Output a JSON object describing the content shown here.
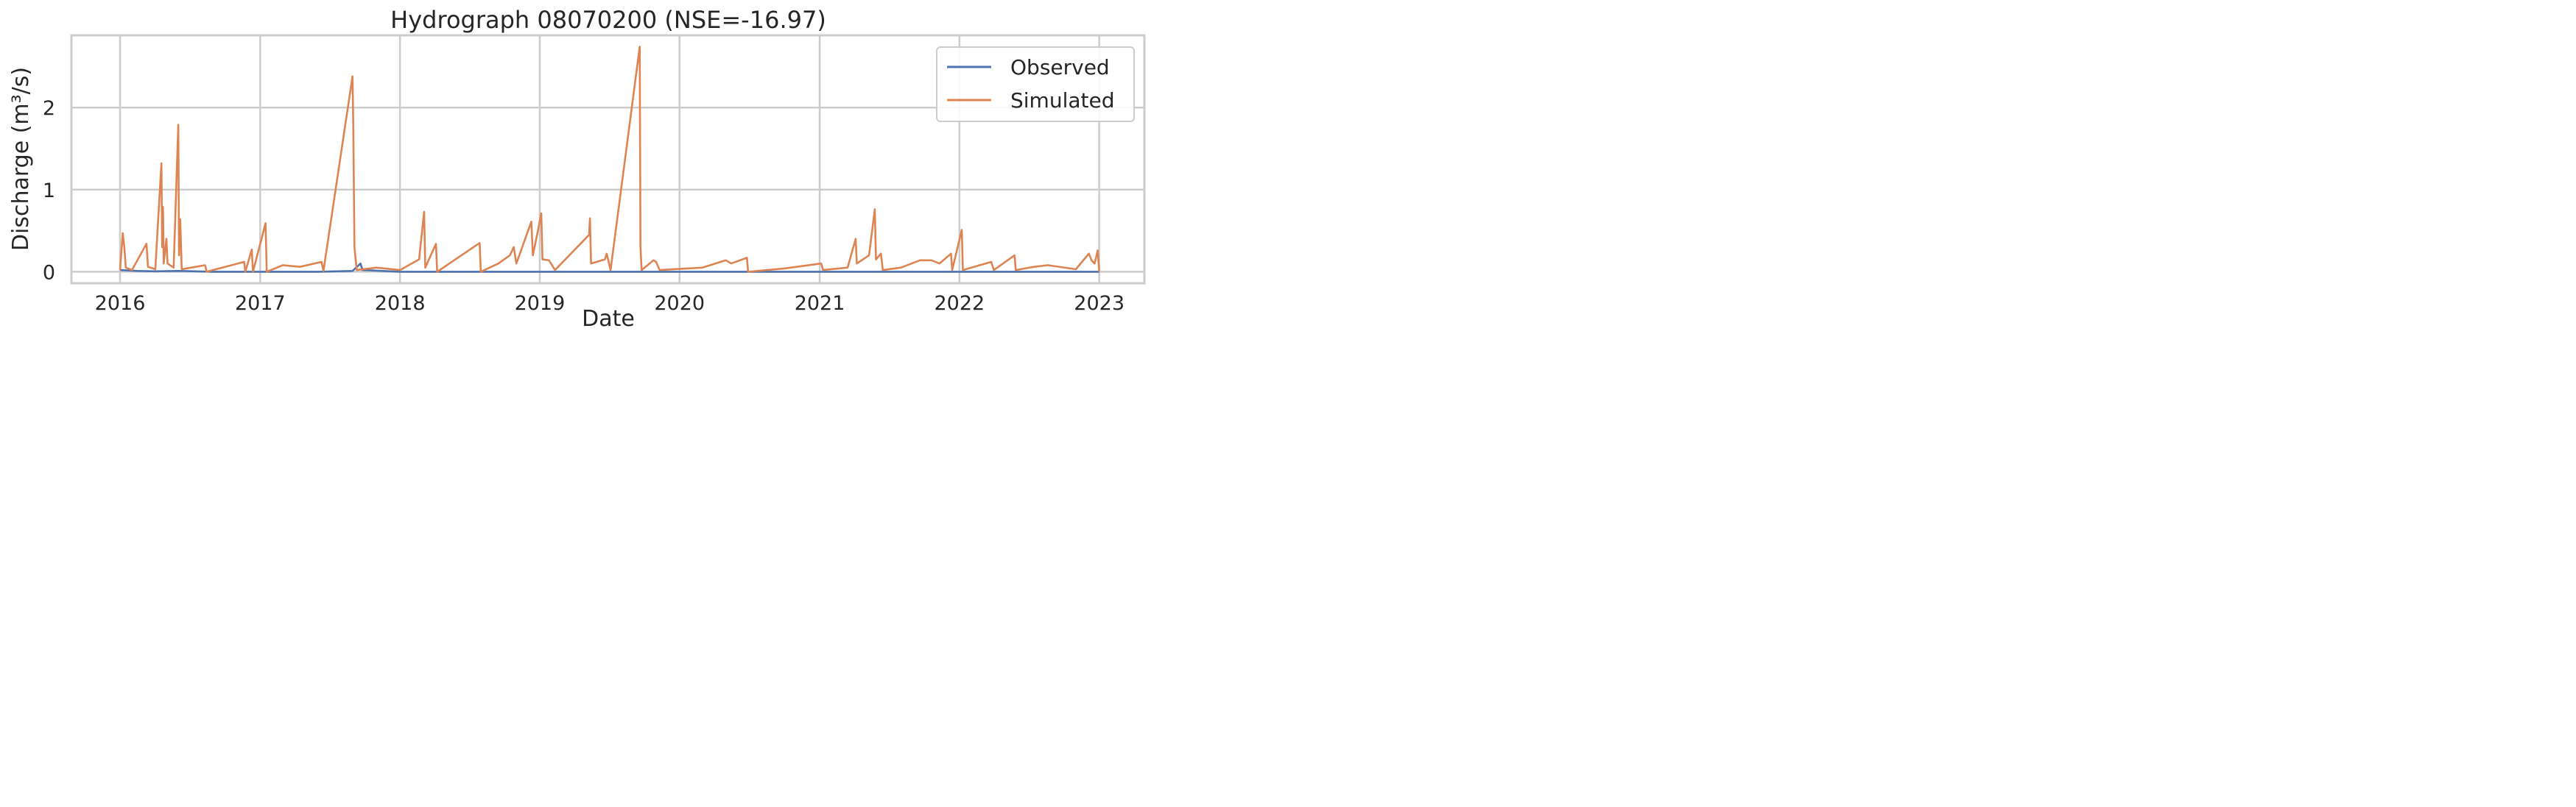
{
  "chart_data": {
    "type": "line",
    "title": "Hydrograph 08070200  (NSE=-16.97)",
    "xlabel": "Date",
    "ylabel": "Discharge (m³/s)",
    "xlim": [
      "2015-08-27",
      "2023-04-29"
    ],
    "ylim": [
      -0.14,
      2.88
    ],
    "x_ticks": [
      "2016",
      "2017",
      "2018",
      "2019",
      "2020",
      "2021",
      "2022",
      "2023"
    ],
    "y_ticks": [
      "0",
      "1",
      "2"
    ],
    "grid": true,
    "legend": "top-right",
    "series": [
      {
        "name": "Observed",
        "color": "#4c72b0",
        "points": [
          [
            "2016-01-01",
            0.02
          ],
          [
            "2016-02-15",
            0.01
          ],
          [
            "2016-04-01",
            0.005
          ],
          [
            "2016-06-01",
            0.01
          ],
          [
            "2016-09-01",
            0.0
          ],
          [
            "2017-01-01",
            0.0
          ],
          [
            "2017-06-01",
            0.0
          ],
          [
            "2017-08-30",
            0.01
          ],
          [
            "2017-09-20",
            0.1
          ],
          [
            "2017-09-25",
            0.02
          ],
          [
            "2018-01-01",
            0.0
          ],
          [
            "2018-06-01",
            0.0
          ],
          [
            "2019-01-01",
            0.0
          ],
          [
            "2019-06-01",
            0.0
          ],
          [
            "2020-01-01",
            0.0
          ],
          [
            "2020-06-01",
            0.0
          ],
          [
            "2021-01-01",
            0.0
          ],
          [
            "2021-06-01",
            0.0
          ],
          [
            "2022-01-01",
            0.0
          ],
          [
            "2022-06-01",
            0.0
          ],
          [
            "2023-01-01",
            0.0
          ]
        ]
      },
      {
        "name": "Simulated",
        "color": "#dd8452",
        "points": [
          [
            "2016-01-01",
            0.02
          ],
          [
            "2016-01-08",
            0.47
          ],
          [
            "2016-01-12",
            0.3
          ],
          [
            "2016-01-16",
            0.05
          ],
          [
            "2016-02-01",
            0.02
          ],
          [
            "2016-03-10",
            0.34
          ],
          [
            "2016-03-14",
            0.06
          ],
          [
            "2016-04-02",
            0.03
          ],
          [
            "2016-04-18",
            1.32
          ],
          [
            "2016-04-20",
            0.3
          ],
          [
            "2016-04-22",
            0.79
          ],
          [
            "2016-04-24",
            0.1
          ],
          [
            "2016-05-01",
            0.4
          ],
          [
            "2016-05-04",
            0.1
          ],
          [
            "2016-05-20",
            0.05
          ],
          [
            "2016-06-01",
            1.79
          ],
          [
            "2016-06-03",
            0.2
          ],
          [
            "2016-06-06",
            0.64
          ],
          [
            "2016-06-10",
            0.03
          ],
          [
            "2016-08-10",
            0.08
          ],
          [
            "2016-08-14",
            0.0
          ],
          [
            "2016-11-20",
            0.12
          ],
          [
            "2016-11-23",
            0.0
          ],
          [
            "2016-12-10",
            0.27
          ],
          [
            "2016-12-13",
            0.0
          ],
          [
            "2017-01-15",
            0.59
          ],
          [
            "2017-01-18",
            0.0
          ],
          [
            "2017-03-01",
            0.08
          ],
          [
            "2017-04-15",
            0.06
          ],
          [
            "2017-06-10",
            0.12
          ],
          [
            "2017-06-15",
            0.01
          ],
          [
            "2017-08-30",
            2.38
          ],
          [
            "2017-09-01",
            1.8
          ],
          [
            "2017-09-04",
            0.3
          ],
          [
            "2017-09-10",
            0.02
          ],
          [
            "2017-11-01",
            0.05
          ],
          [
            "2018-01-01",
            0.02
          ],
          [
            "2018-02-20",
            0.15
          ],
          [
            "2018-03-05",
            0.73
          ],
          [
            "2018-03-08",
            0.05
          ],
          [
            "2018-04-05",
            0.34
          ],
          [
            "2018-04-08",
            0.0
          ],
          [
            "2018-05-10",
            0.1
          ],
          [
            "2018-07-28",
            0.35
          ],
          [
            "2018-07-31",
            0.0
          ],
          [
            "2018-09-15",
            0.1
          ],
          [
            "2018-10-15",
            0.2
          ],
          [
            "2018-10-25",
            0.3
          ],
          [
            "2018-11-01",
            0.1
          ],
          [
            "2018-12-10",
            0.61
          ],
          [
            "2018-12-14",
            0.2
          ],
          [
            "2018-12-28",
            0.52
          ],
          [
            "2019-01-05",
            0.71
          ],
          [
            "2019-01-08",
            0.15
          ],
          [
            "2019-01-25",
            0.14
          ],
          [
            "2019-02-10",
            0.02
          ],
          [
            "2019-05-10",
            0.45
          ],
          [
            "2019-05-12",
            0.65
          ],
          [
            "2019-05-15",
            0.1
          ],
          [
            "2019-06-20",
            0.15
          ],
          [
            "2019-06-25",
            0.22
          ],
          [
            "2019-07-05",
            0.02
          ],
          [
            "2019-09-19",
            2.74
          ],
          [
            "2019-09-21",
            0.3
          ],
          [
            "2019-09-24",
            0.02
          ],
          [
            "2019-10-25",
            0.14
          ],
          [
            "2019-11-01",
            0.12
          ],
          [
            "2019-11-10",
            0.02
          ],
          [
            "2020-03-01",
            0.05
          ],
          [
            "2020-05-01",
            0.14
          ],
          [
            "2020-05-15",
            0.1
          ],
          [
            "2020-06-25",
            0.17
          ],
          [
            "2020-06-28",
            0.0
          ],
          [
            "2020-10-01",
            0.04
          ],
          [
            "2021-01-05",
            0.1
          ],
          [
            "2021-01-10",
            0.02
          ],
          [
            "2021-03-15",
            0.05
          ],
          [
            "2021-04-05",
            0.4
          ],
          [
            "2021-04-08",
            0.1
          ],
          [
            "2021-05-10",
            0.2
          ],
          [
            "2021-05-25",
            0.76
          ],
          [
            "2021-05-28",
            0.15
          ],
          [
            "2021-06-10",
            0.22
          ],
          [
            "2021-06-15",
            0.02
          ],
          [
            "2021-08-01",
            0.05
          ],
          [
            "2021-09-20",
            0.14
          ],
          [
            "2021-10-20",
            0.14
          ],
          [
            "2021-11-10",
            0.1
          ],
          [
            "2021-12-10",
            0.22
          ],
          [
            "2021-12-13",
            0.02
          ],
          [
            "2022-01-07",
            0.51
          ],
          [
            "2022-01-10",
            0.02
          ],
          [
            "2022-03-25",
            0.12
          ],
          [
            "2022-04-01",
            0.02
          ],
          [
            "2022-05-25",
            0.2
          ],
          [
            "2022-05-28",
            0.02
          ],
          [
            "2022-07-15",
            0.06
          ],
          [
            "2022-08-20",
            0.08
          ],
          [
            "2022-11-01",
            0.03
          ],
          [
            "2022-12-05",
            0.22
          ],
          [
            "2022-12-12",
            0.14
          ],
          [
            "2022-12-20",
            0.1
          ],
          [
            "2022-12-28",
            0.26
          ],
          [
            "2023-01-01",
            0.0
          ]
        ]
      }
    ]
  }
}
